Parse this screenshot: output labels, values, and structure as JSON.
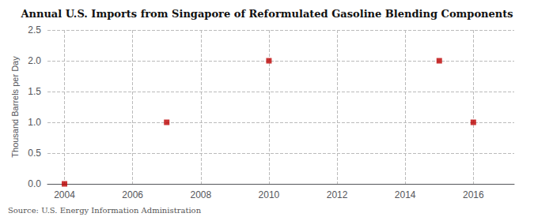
{
  "chart_data": {
    "type": "scatter",
    "title": "Annual U.S. Imports from Singapore of Reformulated Gasoline Blending Components",
    "ylabel": "Thousand Barrels per Day",
    "annotation": "Source: U.S. Energy Information Administration",
    "x": [
      2004,
      2007,
      2010,
      2015,
      2016
    ],
    "values": [
      0.0,
      1.0,
      2.0,
      2.0,
      1.0
    ],
    "color": "#bb0000",
    "marker": "square",
    "xlim": [
      2003.5,
      2017.2
    ],
    "xticks": [
      2004,
      2006,
      2008,
      2010,
      2012,
      2014,
      2016
    ],
    "ylim": [
      0.0,
      2.5
    ],
    "yticks": [
      {
        "value": 0.0,
        "label": "0.0"
      },
      0.5,
      {
        "value": 1.0,
        "label": "1.0"
      },
      1.5,
      {
        "value": 2.0,
        "label": "2.0"
      },
      2.5
    ],
    "grid": true
  }
}
